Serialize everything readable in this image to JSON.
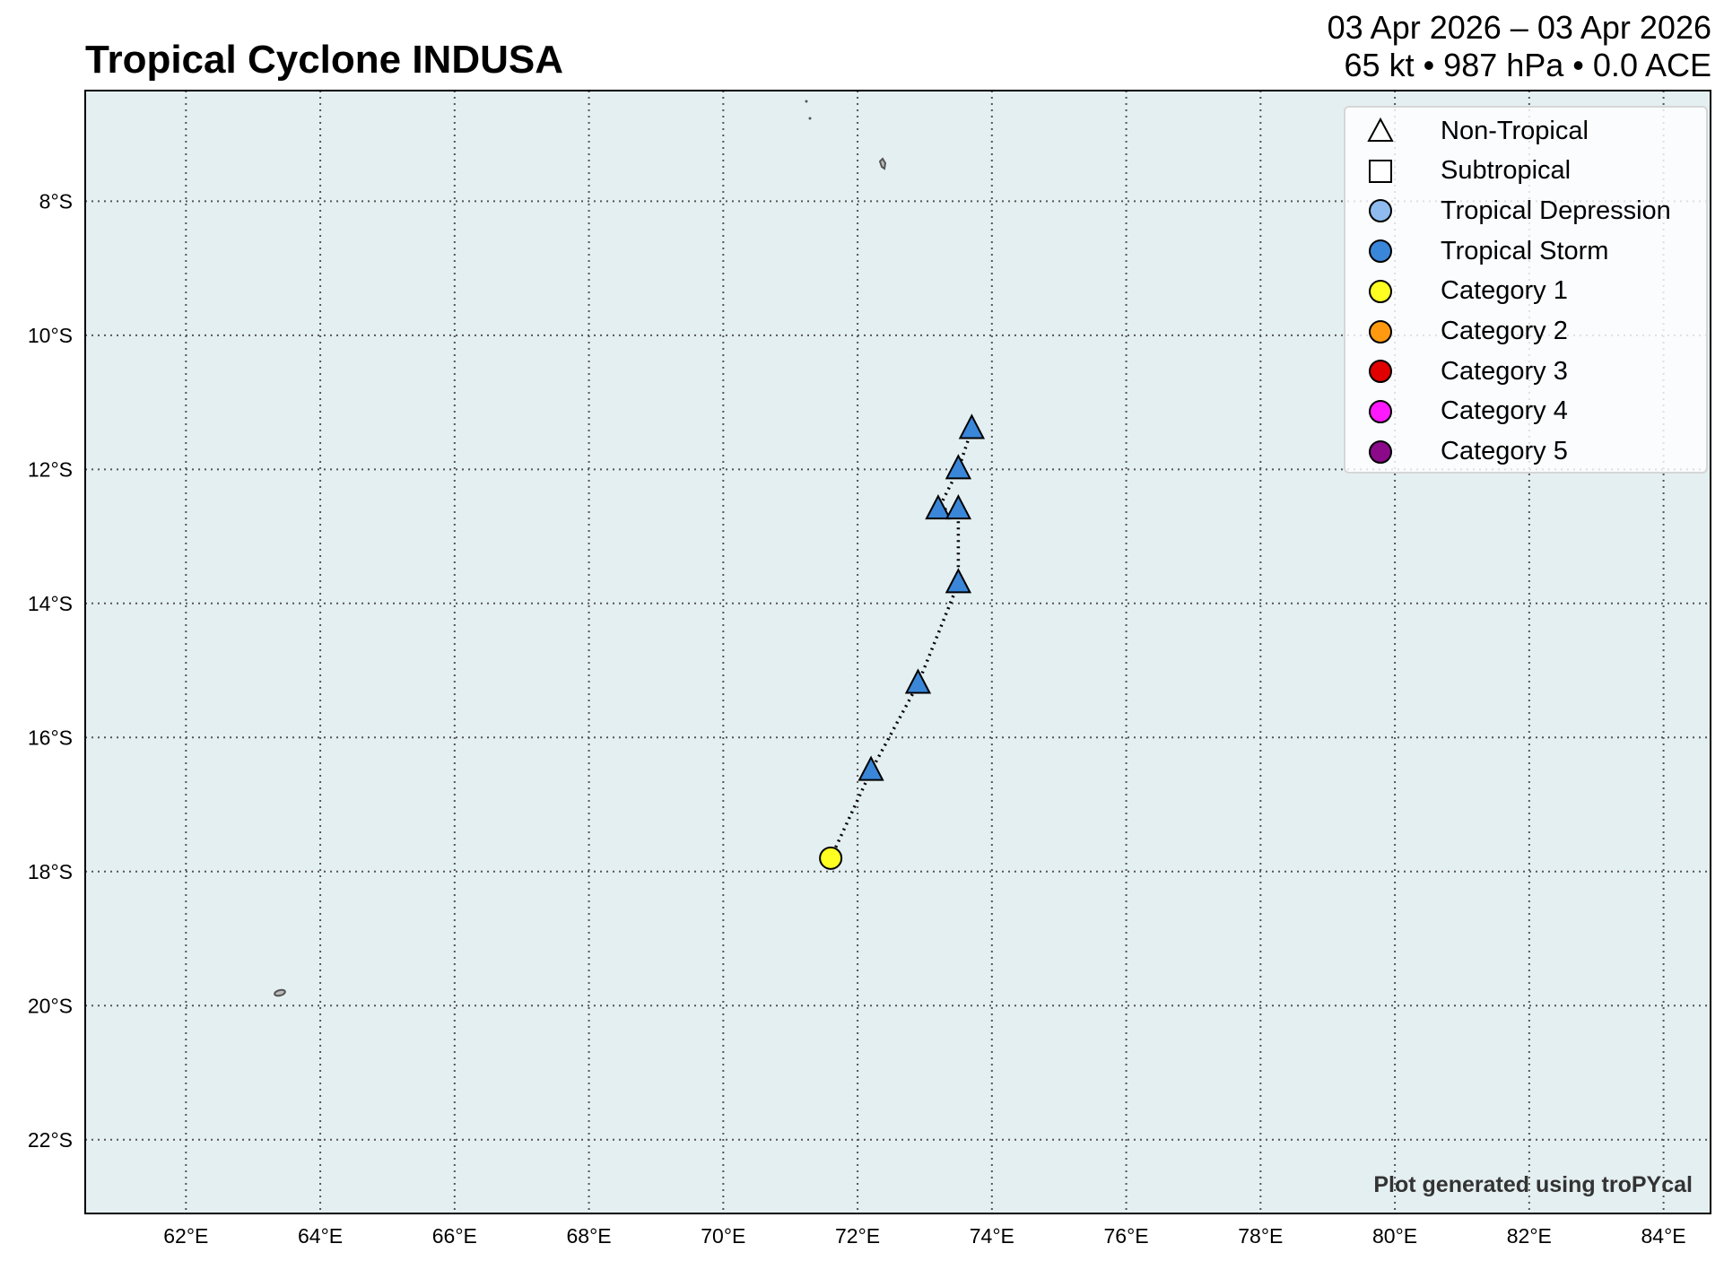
{
  "header": {
    "title": "Tropical Cyclone INDUSA",
    "date_range": "03 Apr 2026 – 03 Apr 2026",
    "stats": "65 kt • 987 hPa • 0.0 ACE"
  },
  "map": {
    "ocean_color": "#e4eff1",
    "extent": {
      "lon": [
        60.5,
        84.7
      ],
      "lat": [
        -23.1,
        -6.35
      ]
    },
    "x_ticks": [
      "62°E",
      "64°E",
      "66°E",
      "68°E",
      "70°E",
      "72°E",
      "74°E",
      "76°E",
      "78°E",
      "80°E",
      "82°E",
      "84°E"
    ],
    "y_ticks": [
      "8°S",
      "10°S",
      "12°S",
      "14°S",
      "16°S",
      "18°S",
      "20°S",
      "22°S"
    ]
  },
  "legend": {
    "items": [
      {
        "label": "Non-Tropical",
        "shape": "triangle",
        "color": "#ffffff"
      },
      {
        "label": "Subtropical",
        "shape": "square",
        "color": "#ffffff"
      },
      {
        "label": "Tropical Depression",
        "shape": "circle",
        "color": "#8fbbee"
      },
      {
        "label": "Tropical Storm",
        "shape": "circle",
        "color": "#3a86d9"
      },
      {
        "label": "Category 1",
        "shape": "circle",
        "color": "#ffff22"
      },
      {
        "label": "Category 2",
        "shape": "circle",
        "color": "#ff9a10"
      },
      {
        "label": "Category 3",
        "shape": "circle",
        "color": "#e00000"
      },
      {
        "label": "Category 4",
        "shape": "circle",
        "color": "#ff19ff"
      },
      {
        "label": "Category 5",
        "shape": "circle",
        "color": "#8a0a8a"
      }
    ]
  },
  "chart_data": {
    "type": "scatter",
    "title": "Tropical Cyclone INDUSA",
    "xlabel": "",
    "ylabel": "",
    "xlim": [
      60.5,
      84.7
    ],
    "ylim": [
      -23.1,
      -6.35
    ],
    "grid": true,
    "legend_position": "top-right",
    "track": [
      {
        "lon": 73.7,
        "lat": -11.4,
        "type": "non-tropical",
        "color": "#3a86d9"
      },
      {
        "lon": 73.5,
        "lat": -12.0,
        "type": "non-tropical",
        "color": "#3a86d9"
      },
      {
        "lon": 73.2,
        "lat": -12.6,
        "type": "non-tropical",
        "color": "#3a86d9"
      },
      {
        "lon": 73.5,
        "lat": -12.6,
        "type": "non-tropical",
        "color": "#3a86d9"
      },
      {
        "lon": 73.5,
        "lat": -13.7,
        "type": "non-tropical",
        "color": "#3a86d9"
      },
      {
        "lon": 72.9,
        "lat": -15.2,
        "type": "non-tropical",
        "color": "#3a86d9"
      },
      {
        "lon": 72.2,
        "lat": -16.5,
        "type": "non-tropical",
        "color": "#3a86d9"
      },
      {
        "lon": 71.6,
        "lat": -17.8,
        "type": "tropical",
        "color": "#ffff22"
      }
    ]
  },
  "footer": {
    "credit": "Plot generated using troPYcal"
  }
}
